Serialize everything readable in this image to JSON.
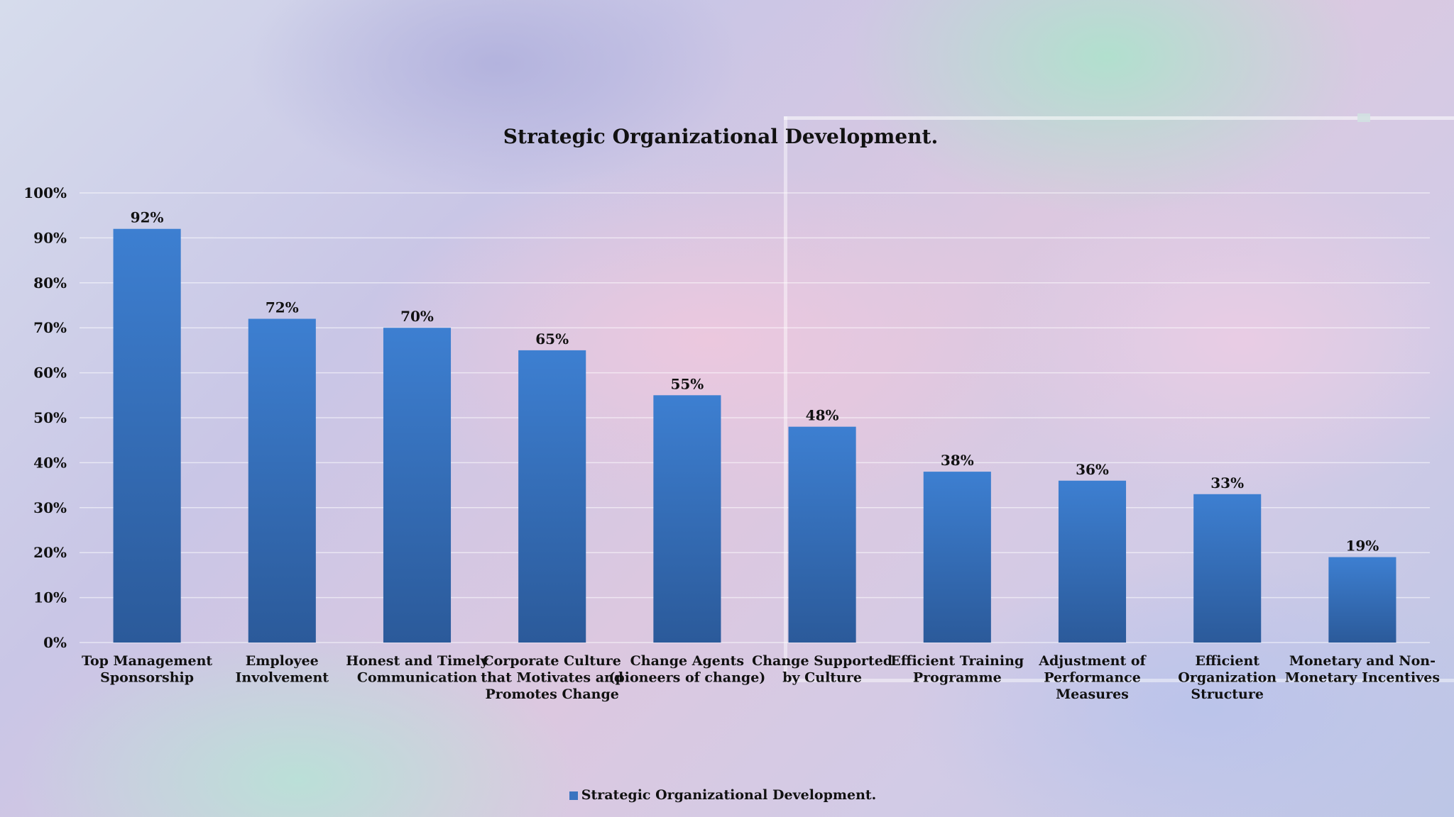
{
  "chart_data": {
    "type": "bar",
    "title": "Strategic Organizational Development.",
    "categories": [
      "Top Management Sponsorship",
      "Employee Involvement",
      "Honest and Timely Communication",
      "Corporate Culture that Motivates and Promotes Change",
      "Change Agents (pioneers of change)",
      "Change Supported by Culture",
      "Efficient Training Programme",
      "Adjustment of Performance Measures",
      "Efficient Organization Structure",
      "Monetary and Non-Monetary Incentives"
    ],
    "category_lines": [
      [
        "Top Management",
        "Sponsorship"
      ],
      [
        "Employee",
        "Involvement"
      ],
      [
        "Honest and Timely",
        "Communication"
      ],
      [
        "Corporate Culture",
        "that Motivates and",
        "Promotes Change"
      ],
      [
        "Change Agents",
        "(pioneers of change)"
      ],
      [
        "Change Supported",
        "by Culture"
      ],
      [
        "Efficient Training",
        "Programme"
      ],
      [
        "Adjustment of",
        "Performance",
        "Measures"
      ],
      [
        "Efficient",
        "Organization",
        "Structure"
      ],
      [
        "Monetary and Non-",
        "Monetary Incentives"
      ]
    ],
    "series": [
      {
        "name": "Strategic Organizational Development.",
        "values": [
          92,
          72,
          70,
          65,
          55,
          48,
          38,
          36,
          33,
          19
        ],
        "labels": [
          "92%",
          "72%",
          "70%",
          "65%",
          "55%",
          "48%",
          "38%",
          "36%",
          "33%",
          "19%"
        ]
      }
    ],
    "ylim": [
      0,
      100
    ],
    "yticks": [
      "0%",
      "10%",
      "20%",
      "30%",
      "40%",
      "50%",
      "60%",
      "70%",
      "80%",
      "90%",
      "100%"
    ],
    "xlabel": "",
    "ylabel": "",
    "grid": true,
    "legend_position": "bottom",
    "colors": {
      "bar_top": "#3d7fd1",
      "bar_bottom": "#2b5a9a",
      "gridline": "#ffffff",
      "text": "#111111"
    }
  }
}
